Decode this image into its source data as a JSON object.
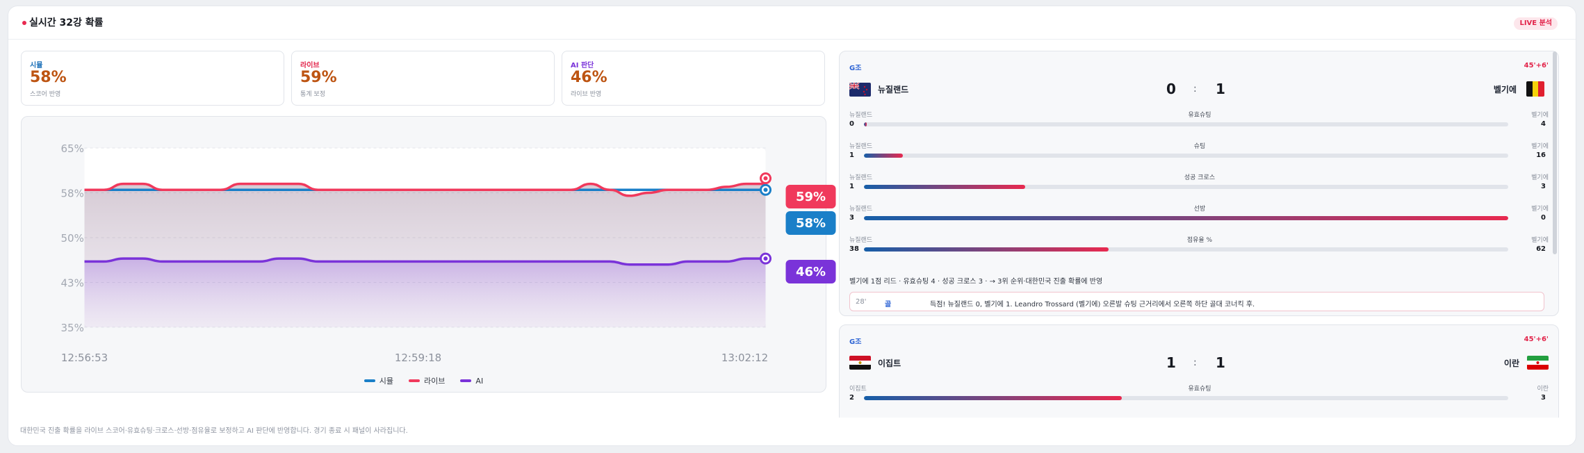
{
  "header": {
    "title": "실시간 32강 확률",
    "live_badge": "LIVE 분석"
  },
  "cards": [
    {
      "label": "시뮬",
      "value": "58%",
      "sub": "스코어 반영",
      "color": "#1a6fb8"
    },
    {
      "label": "라이브",
      "value": "59%",
      "sub": "통계 보정",
      "color": "#e2244a"
    },
    {
      "label": "AI 판단",
      "value": "46%",
      "sub": "라이브 반영",
      "color": "#7a33d9"
    }
  ],
  "chart_data": {
    "type": "line",
    "x_ticks": [
      "12:56:53",
      "12:59:18",
      "13:02:12"
    ],
    "y_ticks": [
      "65%",
      "58%",
      "50%",
      "43%",
      "35%"
    ],
    "ylim": [
      35,
      65
    ],
    "series": [
      {
        "name": "시뮬",
        "color": "#1a7fc8",
        "end_label": "58%",
        "values": [
          58,
          58,
          58,
          58,
          58,
          58,
          58,
          58,
          58,
          58,
          58,
          58,
          58,
          58,
          58,
          58,
          58,
          58,
          58,
          58,
          58,
          58,
          58,
          58,
          58,
          58,
          58,
          58,
          58,
          58,
          58,
          58,
          58,
          58,
          58,
          58
        ]
      },
      {
        "name": "라이브",
        "color": "#f0395c",
        "end_label": "59%",
        "values": [
          58,
          58,
          59,
          59,
          58,
          58,
          58,
          58,
          59,
          59,
          59,
          59,
          58,
          58,
          58,
          58,
          58,
          58,
          58,
          58,
          58,
          58,
          58,
          58,
          58,
          58,
          59,
          58,
          57,
          57.5,
          58,
          58,
          58,
          58.5,
          59,
          59
        ]
      },
      {
        "name": "AI",
        "color": "#7a33d9",
        "end_label": "46%",
        "values": [
          46,
          46,
          46.5,
          46.5,
          46,
          46,
          46,
          46,
          46,
          46,
          46.5,
          46.5,
          46,
          46,
          46,
          46,
          46,
          46,
          46,
          46,
          46,
          46,
          46,
          46,
          46,
          46,
          46,
          46,
          45.5,
          45.5,
          45.5,
          46,
          46,
          46,
          46.5,
          46.5
        ]
      }
    ]
  },
  "legend": [
    "시뮬",
    "라이브",
    "AI"
  ],
  "matches": [
    {
      "group": "G조",
      "time": "45'+6'",
      "home": "뉴질랜드",
      "away": "벨기에",
      "home_score": "0",
      "away_score": "1",
      "sep": ":",
      "home_flag": "flag-new-zealand-icon",
      "away_flag": "flag-belgium-icon",
      "stats": [
        {
          "name": "유효슈팅",
          "home": "0",
          "away": "4",
          "home_share": 0.0
        },
        {
          "name": "슈팅",
          "home": "1",
          "away": "16",
          "home_share": 0.06
        },
        {
          "name": "성공 크로스",
          "home": "1",
          "away": "3",
          "home_share": 0.25
        },
        {
          "name": "선방",
          "home": "3",
          "away": "0",
          "home_share": 1.0
        },
        {
          "name": "점유율 %",
          "home": "38",
          "away": "62",
          "home_share": 0.38
        }
      ],
      "summary": "벨기에 1점 리드 · 유효슈팅 4 · 성공 크로스 3 · → 3위 순위·대한민국 진출 확률에 반영",
      "event": {
        "minute": "28'",
        "type": "골",
        "text": "득점! 뉴질랜드 0, 벨기에 1. Leandro Trossard (벨기에) 오른발 슈팅 근거리에서 오른쪽 하단 골대 코너킥 후."
      }
    },
    {
      "group": "G조",
      "time": "45'+6'",
      "home": "이집트",
      "away": "이란",
      "home_score": "1",
      "away_score": "1",
      "sep": ":",
      "home_flag": "flag-egypt-icon",
      "away_flag": "flag-iran-icon",
      "stats": [
        {
          "name": "유효슈팅",
          "home": "2",
          "away": "3",
          "home_share": 0.4
        }
      ]
    }
  ],
  "footnote": "대한민국 진출 확률을 라이브 스코어·유효슈팅·크로스·선방·점유율로 보정하고 AI 판단에 반영합니다. 경기 종료 시 패널이 사라집니다."
}
